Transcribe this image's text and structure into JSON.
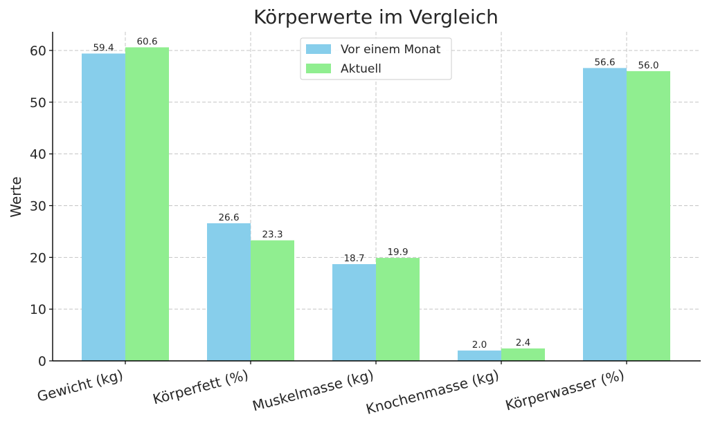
{
  "chart_data": {
    "type": "bar",
    "title": "Körperwerte im Vergleich",
    "xlabel": "",
    "ylabel": "Werte",
    "categories": [
      "Gewicht (kg)",
      "Körperfett (%)",
      "Muskelmasse (kg)",
      "Knochenmasse (kg)",
      "Körperwasser (%)"
    ],
    "series": [
      {
        "name": "Vor einem Monat",
        "color": "#87CEEB",
        "values": [
          59.4,
          26.6,
          18.7,
          2.0,
          56.6
        ],
        "labels": [
          "59.4",
          "26.6",
          "18.7",
          "2.0",
          "56.6"
        ]
      },
      {
        "name": "Aktuell",
        "color": "#90EE90",
        "values": [
          60.6,
          23.3,
          19.9,
          2.4,
          56.0
        ],
        "labels": [
          "60.6",
          "23.3",
          "19.9",
          "2.4",
          "56.0"
        ]
      }
    ],
    "ylim": [
      0,
      63.6
    ],
    "yticks": [
      0,
      10,
      20,
      30,
      40,
      50,
      60
    ],
    "ytick_labels": [
      "0",
      "10",
      "20",
      "30",
      "40",
      "50",
      "60"
    ],
    "grid": true,
    "legend_position": "top-center"
  }
}
